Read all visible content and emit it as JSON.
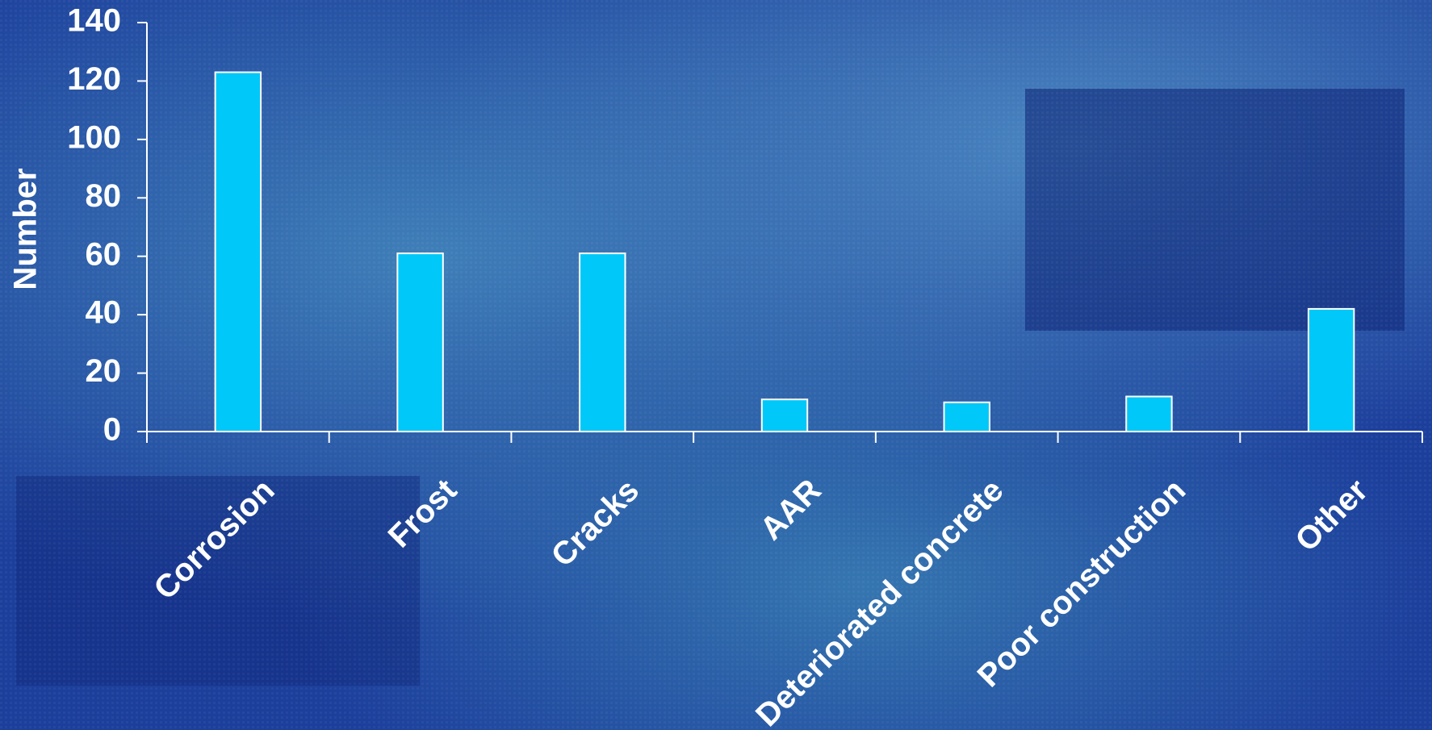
{
  "chart_data": {
    "type": "bar",
    "y_label": "Number",
    "categories": [
      "Corrosion",
      "Frost",
      "Cracks",
      "AAR",
      "Deteriorated concrete",
      "Poor construction",
      "Other"
    ],
    "values": [
      123,
      61,
      61,
      11,
      10,
      12,
      42
    ],
    "color": "#00c8f8",
    "ylim": [
      0,
      140
    ],
    "yticks": [
      0,
      20,
      40,
      60,
      80,
      100,
      120,
      140
    ]
  }
}
